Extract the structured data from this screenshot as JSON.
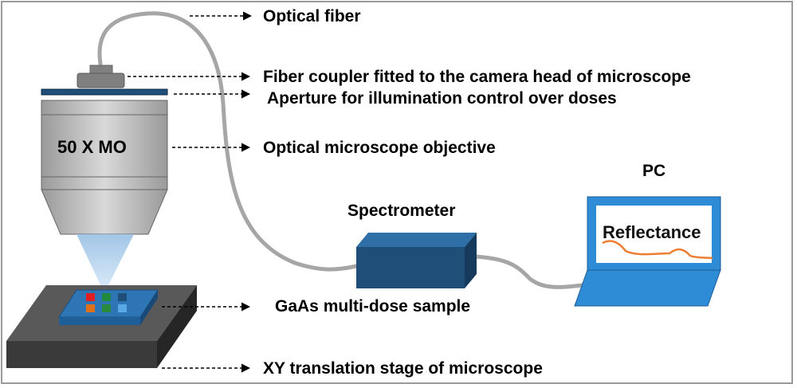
{
  "labels": {
    "optical_fiber": "Optical fiber",
    "fiber_coupler": "Fiber coupler fitted to the camera head of microscope",
    "aperture": "Aperture for illumination control over doses",
    "objective": "Optical microscope objective",
    "sample": "GaAs multi-dose sample",
    "stage": "XY translation stage of microscope",
    "spectrometer": "Spectrometer",
    "pc": "PC",
    "objective_marking": "50 X MO",
    "screen_text": "Reflectance"
  },
  "colors": {
    "fiber": "#a6a6a6",
    "spectrometer": "#1f4e79",
    "laptop": "#2e8bd6",
    "screen_curve": "#ed7d31",
    "stage": "#3a3a3a",
    "sample": "#2e75b6",
    "light_cone": "#bdd7ee",
    "dose_squares": [
      "#e02020",
      "#1f8a3c",
      "#1f4e79",
      "#e0701a",
      "#2a8a3c",
      "#5aa9e6"
    ]
  }
}
